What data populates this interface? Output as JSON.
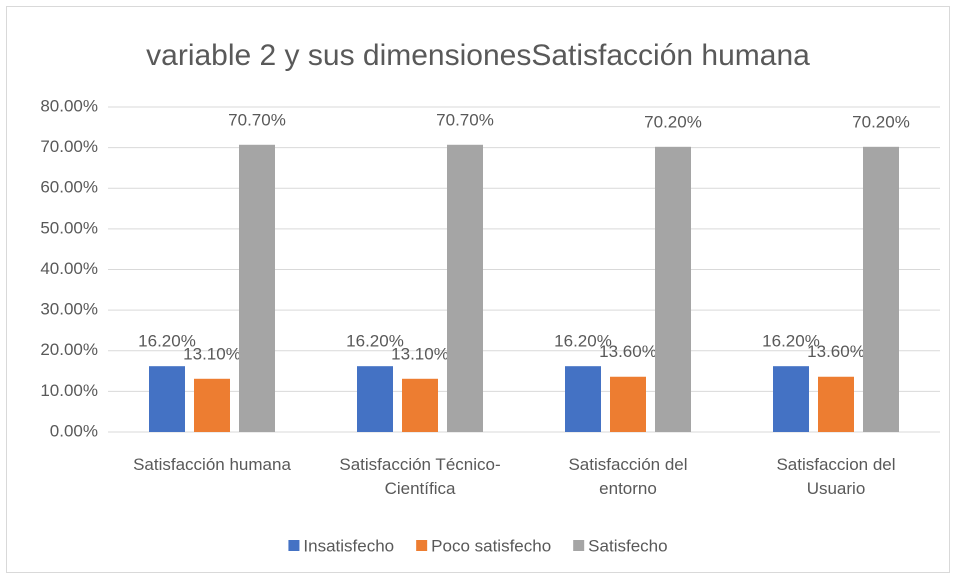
{
  "chart_data": {
    "type": "bar",
    "title": "variable 2 y sus dimensionesSatisfacción humana",
    "categories": [
      "Satisfacción humana",
      "Satisfacción Técnico-\nCientífica",
      "Satisfacción del\nentorno",
      "Satisfaccion del\nUsuario"
    ],
    "series": [
      {
        "name": "Insatisfecho",
        "color": "#4472c4",
        "values": [
          16.2,
          16.2,
          16.2,
          16.2
        ],
        "value_labels": [
          "16.20%",
          "16.20%",
          "16.20%",
          "16.20%"
        ]
      },
      {
        "name": "Poco satisfecho",
        "color": "#ed7d31",
        "values": [
          13.1,
          13.1,
          13.6,
          13.6
        ],
        "value_labels": [
          "13.10%",
          "13.10%",
          "13.60%",
          "13.60%"
        ]
      },
      {
        "name": "Satisfecho",
        "color": "#a5a5a5",
        "values": [
          70.7,
          70.7,
          70.2,
          70.2
        ],
        "value_labels": [
          "70.70%",
          "70.70%",
          "70.20%",
          "70.20%"
        ]
      }
    ],
    "ylim": [
      0,
      80
    ],
    "yticks": [
      {
        "value": 0,
        "label": "0.00%"
      },
      {
        "value": 10,
        "label": "10.00%"
      },
      {
        "value": 20,
        "label": "20.00%"
      },
      {
        "value": 30,
        "label": "30.00%"
      },
      {
        "value": 40,
        "label": "40.00%"
      },
      {
        "value": 50,
        "label": "50.00%"
      },
      {
        "value": 60,
        "label": "60.00%"
      },
      {
        "value": 70,
        "label": "70.00%"
      },
      {
        "value": 80,
        "label": "80.00%"
      }
    ],
    "grid": true,
    "legend": "bottom"
  }
}
